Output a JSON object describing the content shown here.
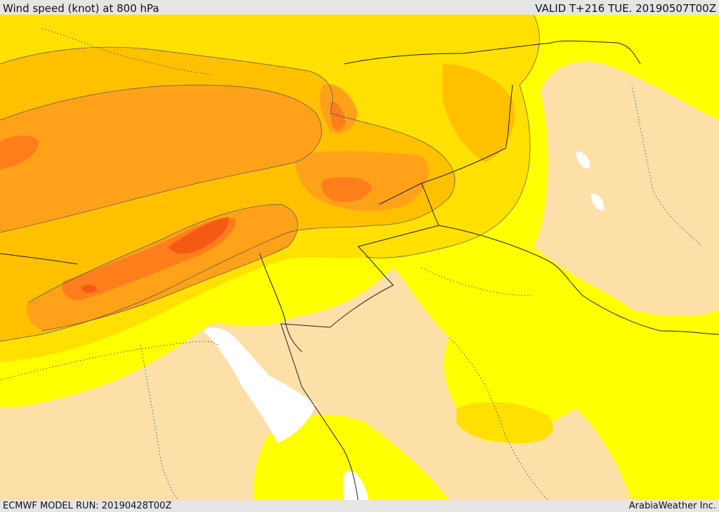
{
  "header": {
    "title": "Wind speed (knot) at 800 hPa",
    "valid": "VALID T+216 TUE. 20190507T00Z"
  },
  "footer": {
    "model_run": "ECMWF MODEL RUN: 20190428T00Z",
    "credit": "ArabiaWeather Inc."
  },
  "map": {
    "variable": "wind speed",
    "level": "800 hPa",
    "colors": {
      "calm": "#fde0a8",
      "light": "#ffff00",
      "moderate": "#ffe000",
      "fresh": "#ffc000",
      "strong": "#ffa21a",
      "very_strong": "#ff7e1c",
      "extreme": "#f55a14",
      "sea_gap": "#ffffff"
    }
  }
}
